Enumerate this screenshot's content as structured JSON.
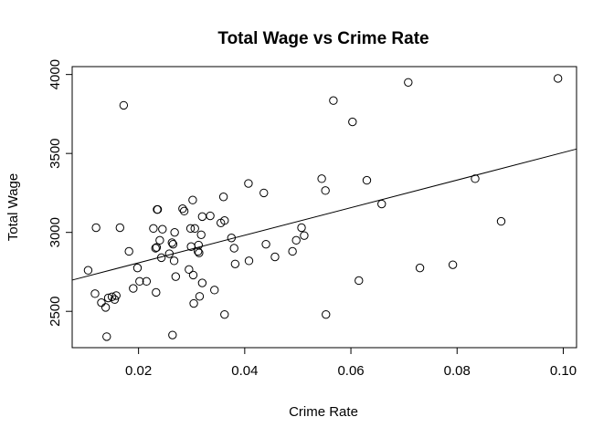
{
  "chart_data": {
    "type": "scatter",
    "title": "Total Wage vs Crime Rate",
    "xlabel": "Crime Rate",
    "ylabel": "Total Wage",
    "xlim": [
      0.0075,
      0.1025
    ],
    "ylim": [
      2270,
      4050
    ],
    "xticks": [
      0.02,
      0.04,
      0.06,
      0.08,
      0.1
    ],
    "xtick_labels": [
      "0.02",
      "0.04",
      "0.06",
      "0.08",
      "0.10"
    ],
    "yticks": [
      2500,
      3000,
      3500,
      4000
    ],
    "ytick_labels": [
      "2500",
      "3000",
      "3500",
      "4000"
    ],
    "grid": false,
    "legend": "none",
    "marker": "open-circle",
    "fit_line": {
      "x": [
        0.0075,
        0.1025
      ],
      "y": [
        2698,
        3528
      ]
    },
    "points": [
      {
        "x": 0.0105,
        "y": 2760
      },
      {
        "x": 0.0118,
        "y": 2612
      },
      {
        "x": 0.012,
        "y": 3030
      },
      {
        "x": 0.013,
        "y": 2555
      },
      {
        "x": 0.0138,
        "y": 2525
      },
      {
        "x": 0.014,
        "y": 2340
      },
      {
        "x": 0.0143,
        "y": 2585
      },
      {
        "x": 0.015,
        "y": 2592
      },
      {
        "x": 0.0155,
        "y": 2575
      },
      {
        "x": 0.0158,
        "y": 2600
      },
      {
        "x": 0.0165,
        "y": 3030
      },
      {
        "x": 0.0172,
        "y": 3805
      },
      {
        "x": 0.0182,
        "y": 2880
      },
      {
        "x": 0.019,
        "y": 2645
      },
      {
        "x": 0.0198,
        "y": 2775
      },
      {
        "x": 0.0202,
        "y": 2690
      },
      {
        "x": 0.0215,
        "y": 2690
      },
      {
        "x": 0.0228,
        "y": 3025
      },
      {
        "x": 0.0232,
        "y": 2900
      },
      {
        "x": 0.0234,
        "y": 2905
      },
      {
        "x": 0.0235,
        "y": 3145
      },
      {
        "x": 0.0236,
        "y": 3145
      },
      {
        "x": 0.024,
        "y": 2950
      },
      {
        "x": 0.0243,
        "y": 2840
      },
      {
        "x": 0.0245,
        "y": 3020
      },
      {
        "x": 0.0233,
        "y": 2620
      },
      {
        "x": 0.0258,
        "y": 2865
      },
      {
        "x": 0.0263,
        "y": 2935
      },
      {
        "x": 0.0265,
        "y": 2925
      },
      {
        "x": 0.0267,
        "y": 2820
      },
      {
        "x": 0.0268,
        "y": 3000
      },
      {
        "x": 0.0264,
        "y": 2350
      },
      {
        "x": 0.027,
        "y": 2720
      },
      {
        "x": 0.0283,
        "y": 3150
      },
      {
        "x": 0.0286,
        "y": 3135
      },
      {
        "x": 0.0295,
        "y": 2765
      },
      {
        "x": 0.0298,
        "y": 3025
      },
      {
        "x": 0.0299,
        "y": 2910
      },
      {
        "x": 0.0302,
        "y": 3205
      },
      {
        "x": 0.0303,
        "y": 2730
      },
      {
        "x": 0.0304,
        "y": 2550
      },
      {
        "x": 0.0306,
        "y": 3025
      },
      {
        "x": 0.0312,
        "y": 2880
      },
      {
        "x": 0.0313,
        "y": 2920
      },
      {
        "x": 0.0314,
        "y": 2870
      },
      {
        "x": 0.0315,
        "y": 2595
      },
      {
        "x": 0.0318,
        "y": 2985
      },
      {
        "x": 0.032,
        "y": 3100
      },
      {
        "x": 0.032,
        "y": 2680
      },
      {
        "x": 0.0335,
        "y": 3105
      },
      {
        "x": 0.0343,
        "y": 2635
      },
      {
        "x": 0.0355,
        "y": 3060
      },
      {
        "x": 0.036,
        "y": 3225
      },
      {
        "x": 0.0362,
        "y": 3075
      },
      {
        "x": 0.0362,
        "y": 2480
      },
      {
        "x": 0.0375,
        "y": 2965
      },
      {
        "x": 0.038,
        "y": 2900
      },
      {
        "x": 0.0382,
        "y": 2800
      },
      {
        "x": 0.0407,
        "y": 3310
      },
      {
        "x": 0.0408,
        "y": 2820
      },
      {
        "x": 0.0436,
        "y": 3250
      },
      {
        "x": 0.044,
        "y": 2925
      },
      {
        "x": 0.0457,
        "y": 2845
      },
      {
        "x": 0.049,
        "y": 2880
      },
      {
        "x": 0.0497,
        "y": 2950
      },
      {
        "x": 0.0507,
        "y": 3030
      },
      {
        "x": 0.0512,
        "y": 2980
      },
      {
        "x": 0.0545,
        "y": 3340
      },
      {
        "x": 0.0552,
        "y": 3265
      },
      {
        "x": 0.0553,
        "y": 2480
      },
      {
        "x": 0.0567,
        "y": 3835
      },
      {
        "x": 0.0603,
        "y": 3700
      },
      {
        "x": 0.0615,
        "y": 2695
      },
      {
        "x": 0.063,
        "y": 3330
      },
      {
        "x": 0.0658,
        "y": 3180
      },
      {
        "x": 0.0708,
        "y": 3950
      },
      {
        "x": 0.073,
        "y": 2775
      },
      {
        "x": 0.0792,
        "y": 2795
      },
      {
        "x": 0.0834,
        "y": 3340
      },
      {
        "x": 0.0883,
        "y": 3070
      },
      {
        "x": 0.099,
        "y": 3975
      }
    ]
  }
}
